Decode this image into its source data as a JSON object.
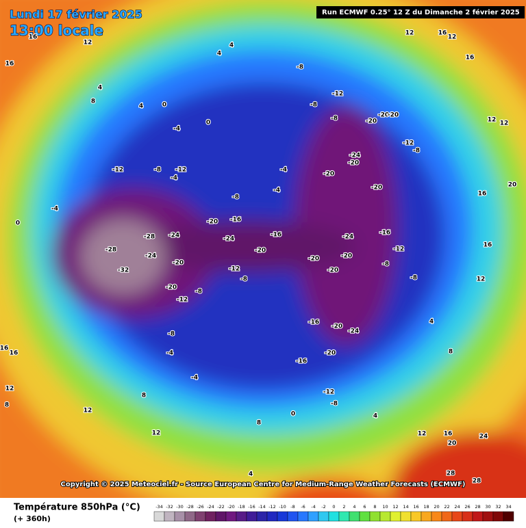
{
  "header": {
    "title": "Lundi 17 février 2025",
    "time": "13:00 locale",
    "run": "Run ECMWF 0.25° 12 Z du Dimanche 2 février 2025"
  },
  "copyright": "Copyright © 2025 Meteociel.fr - Source European Centre for Medium-Range Weather Forecasts (ECMWF)",
  "footer": {
    "variable": "Température 850hPa (°C)",
    "lead": "(+ 360h)"
  },
  "colorbar": {
    "ticks": [
      -34,
      -32,
      -30,
      -28,
      -26,
      -24,
      -22,
      -20,
      -18,
      -16,
      -14,
      -12,
      -10,
      -8,
      -6,
      -4,
      -2,
      0,
      2,
      4,
      6,
      8,
      10,
      12,
      14,
      16,
      18,
      20,
      22,
      24,
      26,
      28,
      30,
      32,
      34
    ],
    "colors": [
      "#d8d8d8",
      "#c0b4c0",
      "#a890a8",
      "#906888",
      "#804070",
      "#702060",
      "#601468",
      "#701880",
      "#581c88",
      "#401c98",
      "#2c24a8",
      "#2028c0",
      "#1838d8",
      "#2054f0",
      "#2878ff",
      "#30a0ff",
      "#30c8f0",
      "#20e0e0",
      "#30e8b0",
      "#40e070",
      "#60e040",
      "#90e030",
      "#b8e830",
      "#e0f030",
      "#f0e030",
      "#f8c828",
      "#f8a820",
      "#f88818",
      "#f06818",
      "#e84818",
      "#d83018",
      "#c01818",
      "#a01010",
      "#800808",
      "#500000"
    ]
  },
  "map": {
    "contour_labels": [
      16,
      16,
      12,
      4,
      8,
      4,
      0,
      -4,
      -12,
      -8,
      -12,
      -4,
      0,
      -4,
      -28,
      -24,
      -28,
      -32,
      -24,
      -20,
      -20,
      -12,
      -8,
      -20,
      -16,
      -24,
      -20,
      -16,
      -12,
      -8,
      -20,
      -20,
      -24,
      -20,
      -16,
      -20,
      -24,
      -20,
      -16,
      -12,
      -8,
      -16,
      -12,
      -8,
      -8,
      -12,
      -8,
      -12,
      -8,
      -8,
      -8,
      -20,
      -20,
      -20,
      -24,
      -20,
      -20,
      -20,
      -4,
      -4,
      -8,
      -4,
      -8,
      -4,
      8,
      12,
      12,
      8,
      0,
      4,
      12,
      16,
      20,
      24,
      28,
      28,
      12,
      12,
      16,
      16,
      12,
      12,
      20,
      16,
      16,
      12,
      4,
      8,
      16,
      16,
      12,
      8,
      4,
      4,
      4,
      0
    ]
  }
}
